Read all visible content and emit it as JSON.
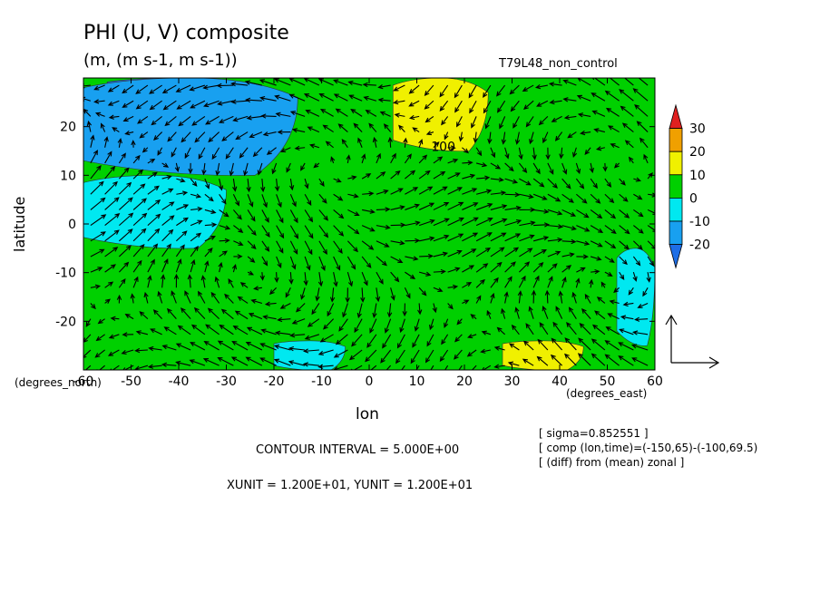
{
  "header": {
    "title": "PHI (U, V) composite",
    "units": "(m, (m s-1, m s-1))",
    "run_name": "T79L48_non_control"
  },
  "axes": {
    "xlabel": "lon",
    "ylabel": "latitude",
    "x_unit_label": "(degrees_east)",
    "y_unit_label": "(degrees_north)"
  },
  "footer": {
    "contour_interval": "CONTOUR INTERVAL = 5.000E+00",
    "units_line": "XUNIT = 1.200E+01, YUNIT = 1.200E+01",
    "info": [
      "[ sigma=0.852551 ]",
      "[ comp (lon,time)=(-150,65)-(-100,69.5)",
      "[ (diff) from (mean) zonal ]"
    ]
  },
  "chart_data": {
    "type": "heatmap",
    "overlay": "vector",
    "title": "PHI (U, V) composite",
    "subtitle": "(m, (m s-1, m s-1))",
    "xlabel": "lon",
    "ylabel": "latitude",
    "xlim": [
      -60,
      60
    ],
    "ylim": [
      -30,
      30
    ],
    "xticks": [
      -60,
      -50,
      -40,
      -30,
      -20,
      -10,
      0,
      10,
      20,
      30,
      40,
      50,
      60
    ],
    "yticks": [
      -20,
      -10,
      0,
      10,
      20
    ],
    "contour_interval": 5,
    "contour_label": "100",
    "colorbar": {
      "levels": [
        -20,
        -10,
        0,
        10,
        20,
        30
      ],
      "colors": [
        "#1e6ee6",
        "#18a0f0",
        "#00e8f0",
        "#00d000",
        "#f0f000",
        "#f0a000",
        "#e02020"
      ]
    },
    "field_regions": [
      {
        "value_range": [
          -30,
          -20
        ],
        "x": [
          -55,
          -25
        ],
        "y": [
          22,
          30
        ]
      },
      {
        "value_range": [
          -20,
          -10
        ],
        "x": [
          -60,
          -15
        ],
        "y": [
          10,
          30
        ]
      },
      {
        "value_range": [
          -10,
          0
        ],
        "x": [
          -60,
          -30
        ],
        "y": [
          -5,
          10
        ]
      },
      {
        "value_range": [
          10,
          20
        ],
        "x": [
          5,
          25
        ],
        "y": [
          15,
          30
        ]
      },
      {
        "value_range": [
          10,
          20
        ],
        "x": [
          28,
          45
        ],
        "y": [
          -30,
          -24
        ]
      },
      {
        "value_range": [
          -10,
          0
        ],
        "x": [
          -20,
          -5
        ],
        "y": [
          -30,
          -24
        ]
      },
      {
        "value_range": [
          -10,
          0
        ],
        "x": [
          52,
          60
        ],
        "y": [
          -25,
          -5
        ]
      }
    ],
    "reference_vector": {
      "u": 12,
      "v": 12
    }
  }
}
